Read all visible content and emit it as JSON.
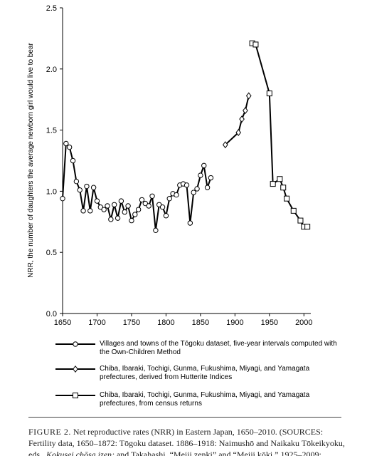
{
  "chart_data": {
    "type": "line",
    "ylabel": "NRR, the number of daughters the average newborn girl would live to bear",
    "xlim": [
      1650,
      2010
    ],
    "ylim": [
      0,
      2.5
    ],
    "xticks": [
      1650,
      1700,
      1750,
      1800,
      1850,
      1900,
      1950,
      2000
    ],
    "yticks": [
      {
        "value": 0,
        "label": "0.0"
      },
      0.5,
      {
        "value": 1,
        "label": "1.0"
      },
      1.5,
      {
        "value": 2,
        "label": "2.0"
      },
      2.5
    ],
    "series": [
      {
        "name": "Villages and towns of the Tōgoku dataset, five-year intervals computed with the Own-Children Method",
        "color": "#000000",
        "marker": "circle",
        "x": [
          1650,
          1655,
          1660,
          1665,
          1670,
          1675,
          1680,
          1685,
          1690,
          1695,
          1700,
          1705,
          1710,
          1715,
          1720,
          1725,
          1730,
          1735,
          1740,
          1745,
          1750,
          1755,
          1760,
          1765,
          1770,
          1775,
          1780,
          1785,
          1790,
          1795,
          1800,
          1805,
          1810,
          1815,
          1820,
          1825,
          1830,
          1835,
          1840,
          1845,
          1850,
          1855,
          1860,
          1865
        ],
        "values": [
          0.94,
          1.39,
          1.36,
          1.25,
          1.08,
          1.01,
          0.84,
          1.04,
          0.84,
          1.03,
          0.92,
          0.87,
          0.85,
          0.88,
          0.77,
          0.89,
          0.78,
          0.92,
          0.83,
          0.88,
          0.76,
          0.81,
          0.85,
          0.93,
          0.9,
          0.88,
          0.96,
          0.68,
          0.89,
          0.87,
          0.8,
          0.94,
          0.98,
          0.97,
          1.05,
          1.06,
          1.05,
          0.74,
          0.99,
          1.02,
          1.13,
          1.21,
          1.03,
          1.11
        ]
      },
      {
        "name": "Chiba, Ibaraki, Tochigi, Gunma, Fukushima, Miyagi, and Yamagata prefectures, derived from Hutterite Indices",
        "color": "#000000",
        "marker": "diamond",
        "x": [
          1886,
          1905,
          1910,
          1915,
          1920
        ],
        "values": [
          1.38,
          1.48,
          1.59,
          1.66,
          1.78
        ]
      },
      {
        "name": "Chiba, Ibaraki, Tochigi, Gunma, Fukushima, Miyagi, and Yamagata prefectures, from census returns",
        "color": "#000000",
        "marker": "square",
        "x": [
          1925,
          1930,
          1950,
          1955,
          1965,
          1970,
          1975,
          1985,
          1995,
          2000,
          2005
        ],
        "values": [
          2.21,
          2.2,
          1.8,
          1.06,
          1.1,
          1.03,
          0.94,
          0.84,
          0.76,
          0.71,
          0.71
        ]
      }
    ]
  },
  "caption": {
    "figure": "FIGURE 2.",
    "title": "Net reproductive rates (NRR) in Eastern Japan, 1650–2010.",
    "sources": "(SOURCES: Fertility data, 1650–1872: Tōgoku dataset. 1886–1918: Naimushō and Naikaku Tōkeikyoku, eds.,",
    "italic": "Kokusei chōsa izen;",
    "rest": "and Takahashi, “Meiji zenki” and “Meiji kōki.” 1925–2009:"
  }
}
